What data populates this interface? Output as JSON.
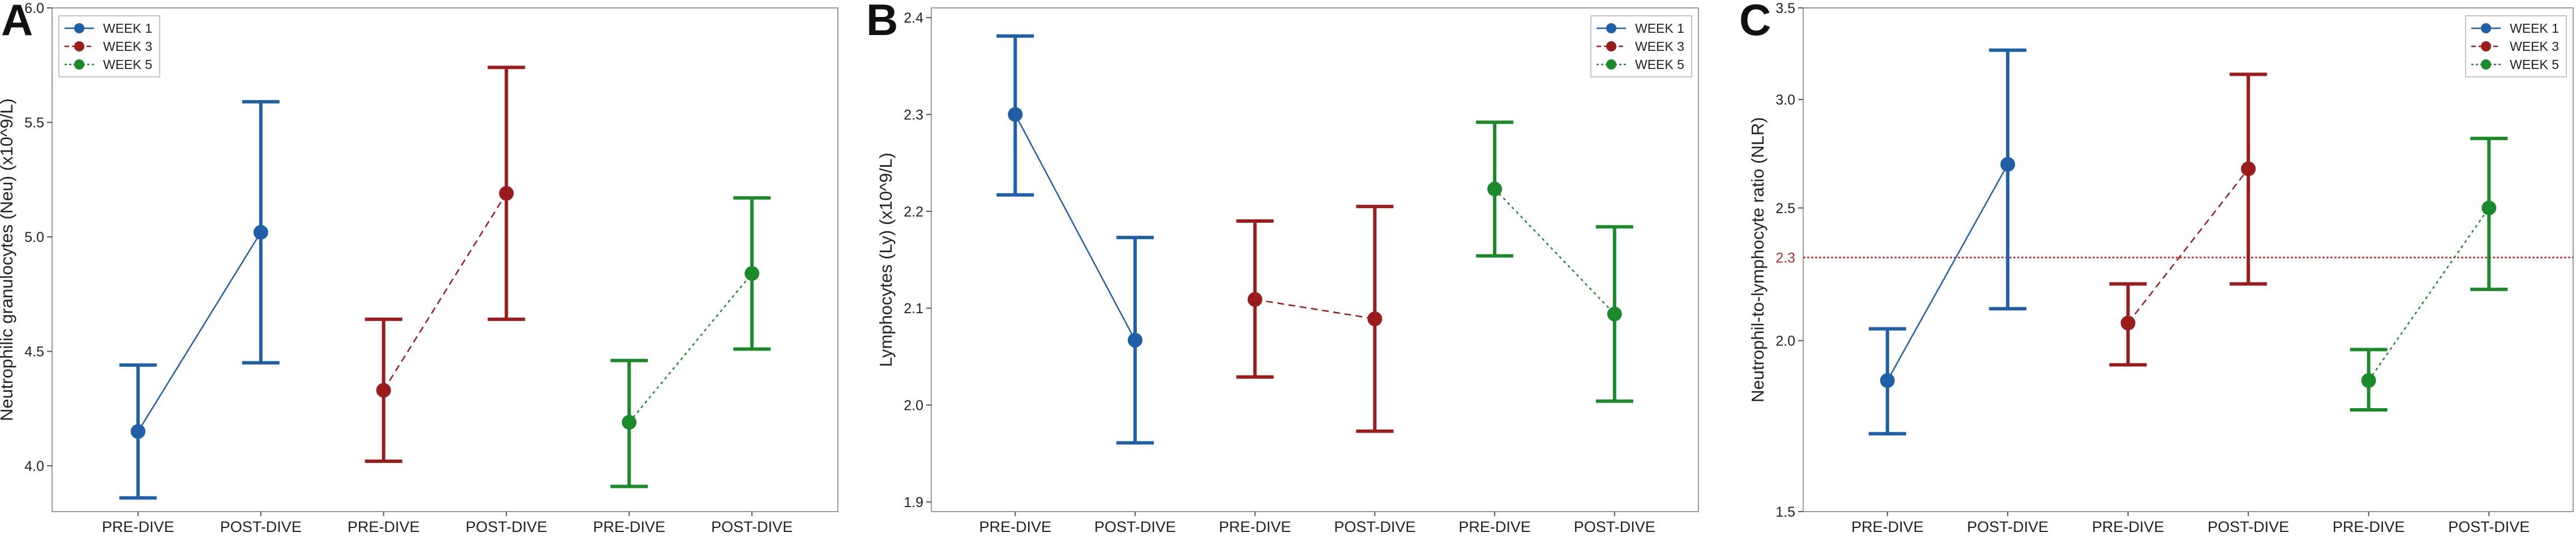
{
  "colors": {
    "WEEK 1": "#1f5fa8",
    "WEEK 3": "#9b1c1c",
    "WEEK 5": "#1a8a2a",
    "reference_line": "#c62828"
  },
  "chart_data": [
    {
      "panel": "A",
      "type": "scatter",
      "ylabel": "Neutrophilic granulocytes (Neu) (x10^9/L)",
      "ylim": [
        3.8,
        6.0
      ],
      "yticks": [
        4.0,
        4.5,
        5.0,
        5.5,
        6.0
      ],
      "ytick_labels": [
        "4.0",
        "4.5",
        "5.0",
        "5.5",
        "6.0"
      ],
      "categories": [
        "PRE-DIVE",
        "POST-DIVE",
        "PRE-DIVE",
        "POST-DIVE",
        "PRE-DIVE",
        "POST-DIVE"
      ],
      "legend_position": "top-left",
      "series": [
        {
          "name": "WEEK 1",
          "line_style": "solid",
          "points": [
            {
              "x": 0,
              "mean": 4.15,
              "low": 3.86,
              "high": 4.44
            },
            {
              "x": 1,
              "mean": 5.02,
              "low": 4.45,
              "high": 5.59
            }
          ]
        },
        {
          "name": "WEEK 3",
          "line_style": "dashed",
          "points": [
            {
              "x": 2,
              "mean": 4.33,
              "low": 4.02,
              "high": 4.64
            },
            {
              "x": 3,
              "mean": 5.19,
              "low": 4.64,
              "high": 5.74
            }
          ]
        },
        {
          "name": "WEEK 5",
          "line_style": "dotted",
          "points": [
            {
              "x": 4,
              "mean": 4.19,
              "low": 3.91,
              "high": 4.46
            },
            {
              "x": 5,
              "mean": 4.84,
              "low": 4.51,
              "high": 5.17
            }
          ]
        }
      ]
    },
    {
      "panel": "B",
      "type": "scatter",
      "ylabel": "Lymphocytes (Ly) (x10^9/L)",
      "ylim": [
        1.89,
        2.41
      ],
      "yticks": [
        1.9,
        2.0,
        2.1,
        2.2,
        2.3,
        2.4
      ],
      "ytick_labels": [
        "1.9",
        "2.0",
        "2.1",
        "2.2",
        "2.3",
        "2.4"
      ],
      "categories": [
        "PRE-DIVE",
        "POST-DIVE",
        "PRE-DIVE",
        "POST-DIVE",
        "PRE-DIVE",
        "POST-DIVE"
      ],
      "legend_position": "top-right",
      "series": [
        {
          "name": "WEEK 1",
          "line_style": "solid",
          "points": [
            {
              "x": 0,
              "mean": 2.3,
              "low": 2.217,
              "high": 2.381
            },
            {
              "x": 1,
              "mean": 2.067,
              "low": 1.961,
              "high": 2.173
            }
          ]
        },
        {
          "name": "WEEK 3",
          "line_style": "dashed",
          "points": [
            {
              "x": 2,
              "mean": 2.109,
              "low": 2.029,
              "high": 2.19
            },
            {
              "x": 3,
              "mean": 2.089,
              "low": 1.973,
              "high": 2.205
            }
          ]
        },
        {
          "name": "WEEK 5",
          "line_style": "dotted",
          "points": [
            {
              "x": 4,
              "mean": 2.223,
              "low": 2.154,
              "high": 2.292
            },
            {
              "x": 5,
              "mean": 2.094,
              "low": 2.004,
              "high": 2.184
            }
          ]
        }
      ]
    },
    {
      "panel": "C",
      "type": "scatter",
      "ylabel": "Neutrophil-to-lymphocyte ratio (NLR)",
      "ylim": [
        1.5,
        3.5
      ],
      "y_scale": "log",
      "yticks": [
        1.5,
        2.0,
        2.5,
        3.0,
        3.5
      ],
      "ytick_labels": [
        "1.5",
        "2.0",
        "2.5",
        "3.0",
        "3.5"
      ],
      "reference_line": {
        "y": 2.3,
        "label": "2.3"
      },
      "categories": [
        "PRE-DIVE",
        "POST-DIVE",
        "PRE-DIVE",
        "POST-DIVE",
        "PRE-DIVE",
        "POST-DIVE"
      ],
      "legend_position": "top-right",
      "series": [
        {
          "name": "WEEK 1",
          "line_style": "solid",
          "points": [
            {
              "x": 0,
              "mean": 1.87,
              "low": 1.71,
              "high": 2.04
            },
            {
              "x": 1,
              "mean": 2.69,
              "low": 2.11,
              "high": 3.26
            }
          ]
        },
        {
          "name": "WEEK 3",
          "line_style": "dashed",
          "points": [
            {
              "x": 2,
              "mean": 2.06,
              "low": 1.92,
              "high": 2.2
            },
            {
              "x": 3,
              "mean": 2.67,
              "low": 2.2,
              "high": 3.13
            }
          ]
        },
        {
          "name": "WEEK 5",
          "line_style": "dotted",
          "points": [
            {
              "x": 4,
              "mean": 1.87,
              "low": 1.78,
              "high": 1.97
            },
            {
              "x": 5,
              "mean": 2.5,
              "low": 2.18,
              "high": 2.81
            }
          ]
        }
      ]
    }
  ]
}
